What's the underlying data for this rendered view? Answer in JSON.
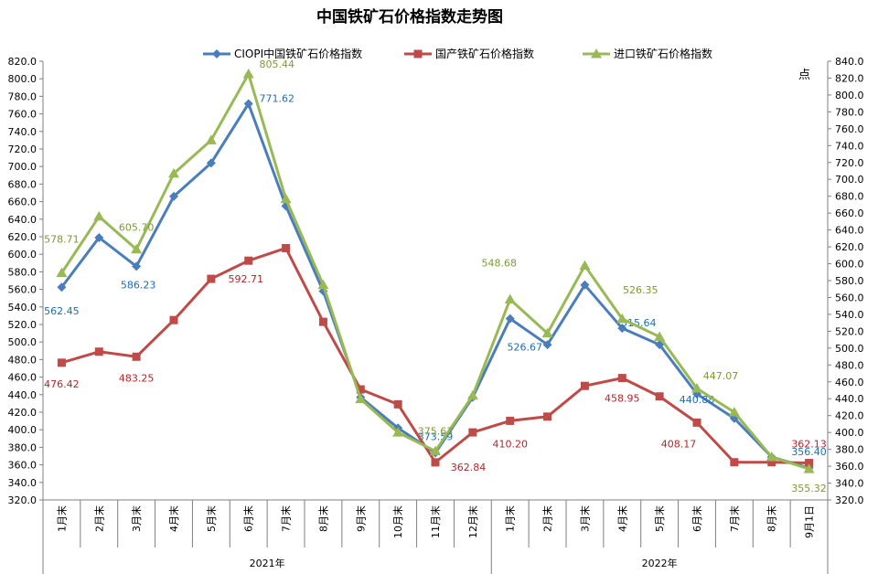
{
  "chart_data": {
    "type": "line",
    "title": "中国铁矿石价格指数走势图",
    "y_right_unit": "点",
    "ylim": [
      320,
      820
    ],
    "yticks": [
      "820.0",
      "800.0",
      "780.0",
      "760.0",
      "740.0",
      "720.0",
      "700.0",
      "680.0",
      "660.0",
      "640.0",
      "620.0",
      "600.0",
      "580.0",
      "560.0",
      "540.0",
      "520.0",
      "500.0",
      "480.0",
      "460.0",
      "440.0",
      "420.0",
      "400.0",
      "380.0",
      "360.0",
      "340.0",
      "320.0"
    ],
    "y2lim": [
      320,
      840
    ],
    "y2ticks": [
      "840.0",
      "820.0",
      "800.0",
      "780.0",
      "760.0",
      "740.0",
      "720.0",
      "700.0",
      "680.0",
      "660.0",
      "640.0",
      "620.0",
      "600.0",
      "580.0",
      "560.0",
      "540.0",
      "520.0",
      "500.0",
      "480.0",
      "460.0",
      "440.0",
      "420.0",
      "400.0",
      "380.0",
      "360.0",
      "340.0",
      "320.0"
    ],
    "categories": [
      "1月末",
      "2月末",
      "3月末",
      "4月末",
      "5月末",
      "6月末",
      "7月末",
      "8月末",
      "9月末",
      "10月末",
      "11月末",
      "12月末",
      "1月末",
      "2月末",
      "3月末",
      "4月末",
      "5月末",
      "6月末",
      "7月末",
      "8月末",
      "9月1日"
    ],
    "groups": [
      {
        "label": "2021年",
        "from": 0,
        "to": 11
      },
      {
        "label": "2022年",
        "from": 12,
        "to": 20
      }
    ],
    "series": [
      {
        "name": "CIOPI中国铁矿石价格指数",
        "color": "#4a7ebb",
        "marker": "diamond",
        "values": [
          562.45,
          619,
          586.23,
          666,
          704,
          771.62,
          655,
          558,
          437,
          402,
          373.59,
          437,
          526.67,
          497,
          565,
          515.64,
          497,
          440.88,
          413,
          369,
          356.4
        ],
        "labels": {
          "0": "562.45",
          "2": "586.23",
          "5": "771.62",
          "10": "373.59",
          "12": "526.67",
          "15": "515.64",
          "17": "440.88",
          "20": "356.40"
        }
      },
      {
        "name": "国产铁矿石价格指数",
        "color": "#be4b48",
        "marker": "square",
        "values": [
          476.42,
          489,
          483.25,
          525,
          572,
          592.71,
          607,
          523,
          446,
          429,
          362.84,
          397,
          410.2,
          415,
          450,
          458.95,
          438,
          408.17,
          363,
          363,
          362.13
        ],
        "labels": {
          "0": "476.42",
          "2": "483.25",
          "5": "592.71",
          "10": "362.84",
          "12": "410.20",
          "15": "458.95",
          "17": "408.17",
          "20": "362.13"
        }
      },
      {
        "name": "进口铁矿石价格指数",
        "color": "#98b954",
        "marker": "triangle",
        "values": [
          578.71,
          643,
          605.7,
          692,
          730,
          805.44,
          663,
          565,
          435,
          397,
          375.63,
          439,
          548.68,
          510,
          587,
          526.35,
          506,
          447.07,
          420,
          369,
          355.32
        ],
        "labels": {
          "0": "578.71",
          "2": "605.70",
          "5": "805.44",
          "10": "375.63",
          "12": "548.68",
          "15": "526.35",
          "17": "447.07",
          "20": "355.32"
        }
      }
    ]
  }
}
